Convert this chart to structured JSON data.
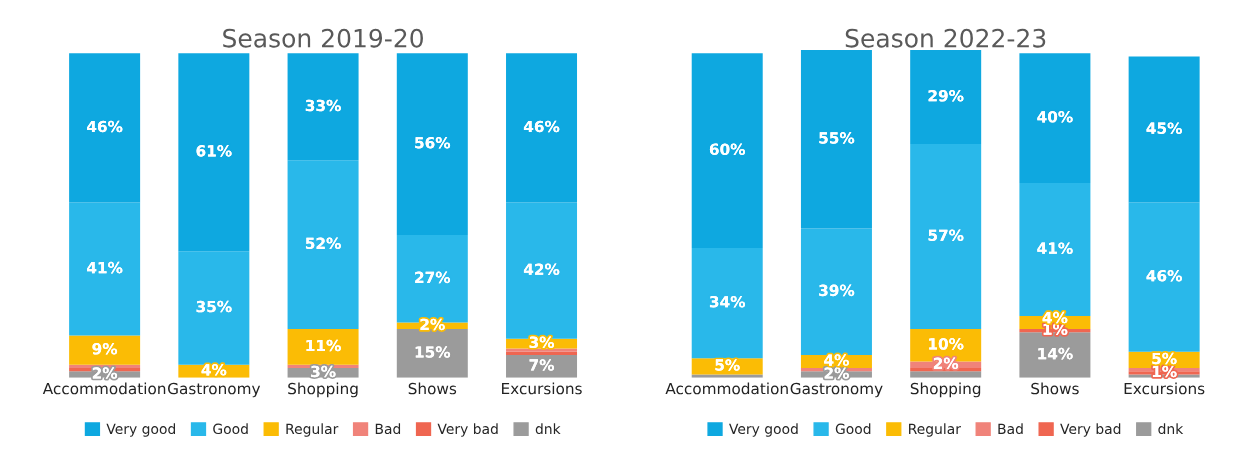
{
  "chart_data": [
    {
      "type": "bar",
      "title": "Season 2019-20",
      "stacked": true,
      "legend": "bottom",
      "grid": false,
      "tick_labels": "x",
      "ylim": [
        0,
        101
      ],
      "categories": [
        "Accommodation",
        "Gastronomy",
        "Shopping",
        "Shows",
        "Excursions"
      ],
      "series": [
        {
          "name": "dnk",
          "color": "#9b9b9b",
          "values": [
            2,
            0,
            3,
            15,
            7
          ],
          "value_labels": [
            "2%",
            null,
            "3%",
            "15%",
            "7%"
          ]
        },
        {
          "name": "Very bad",
          "color": "#ef6651",
          "values": [
            1,
            0,
            0,
            0,
            1
          ],
          "value_labels": [
            null,
            null,
            null,
            null,
            null
          ]
        },
        {
          "name": "Bad",
          "color": "#f0837a",
          "values": [
            1,
            0,
            1,
            0,
            1
          ],
          "value_labels": [
            null,
            null,
            null,
            null,
            null
          ]
        },
        {
          "name": "Regular",
          "color": "#fbbc05",
          "values": [
            9,
            4,
            11,
            2,
            3
          ],
          "value_labels": [
            "9%",
            "4%",
            "11%",
            "2%",
            "3%"
          ]
        },
        {
          "name": "Good",
          "color": "#29b8ea",
          "values": [
            41,
            35,
            52,
            27,
            42
          ],
          "value_labels": [
            "41%",
            "35%",
            "52%",
            "27%",
            "42%"
          ]
        },
        {
          "name": "Very good",
          "color": "#0ea8e0",
          "values": [
            46,
            61,
            33,
            56,
            46
          ],
          "value_labels": [
            "46%",
            "61%",
            "33%",
            "56%",
            "46%"
          ]
        }
      ]
    },
    {
      "type": "bar",
      "title": "Season 2022-23",
      "stacked": true,
      "legend": "bottom",
      "grid": false,
      "tick_labels": "x",
      "ylim": [
        0,
        101
      ],
      "categories": [
        "Accommodation",
        "Gastronomy",
        "Shopping",
        "Shows",
        "Excursions"
      ],
      "series": [
        {
          "name": "dnk",
          "color": "#9b9b9b",
          "values": [
            1,
            2,
            2,
            14,
            1
          ],
          "value_labels": [
            null,
            "2%",
            null,
            "14%",
            null
          ]
        },
        {
          "name": "Very bad",
          "color": "#ef6651",
          "values": [
            0,
            0,
            1,
            1,
            1
          ],
          "value_labels": [
            null,
            null,
            null,
            "1%",
            "1%"
          ]
        },
        {
          "name": "Bad",
          "color": "#f0837a",
          "values": [
            0,
            1,
            2,
            0,
            1
          ],
          "value_labels": [
            null,
            null,
            "2%",
            null,
            null
          ]
        },
        {
          "name": "Regular",
          "color": "#fbbc05",
          "values": [
            5,
            4,
            10,
            4,
            5
          ],
          "value_labels": [
            "5%",
            "4%",
            "10%",
            "4%",
            "5%"
          ]
        },
        {
          "name": "Good",
          "color": "#29b8ea",
          "values": [
            34,
            39,
            57,
            41,
            46
          ],
          "value_labels": [
            "34%",
            "39%",
            "57%",
            "41%",
            "46%"
          ]
        },
        {
          "name": "Very good",
          "color": "#0ea8e0",
          "values": [
            60,
            55,
            29,
            40,
            45
          ],
          "value_labels": [
            "60%",
            "55%",
            "29%",
            "40%",
            "45%"
          ]
        }
      ]
    }
  ]
}
